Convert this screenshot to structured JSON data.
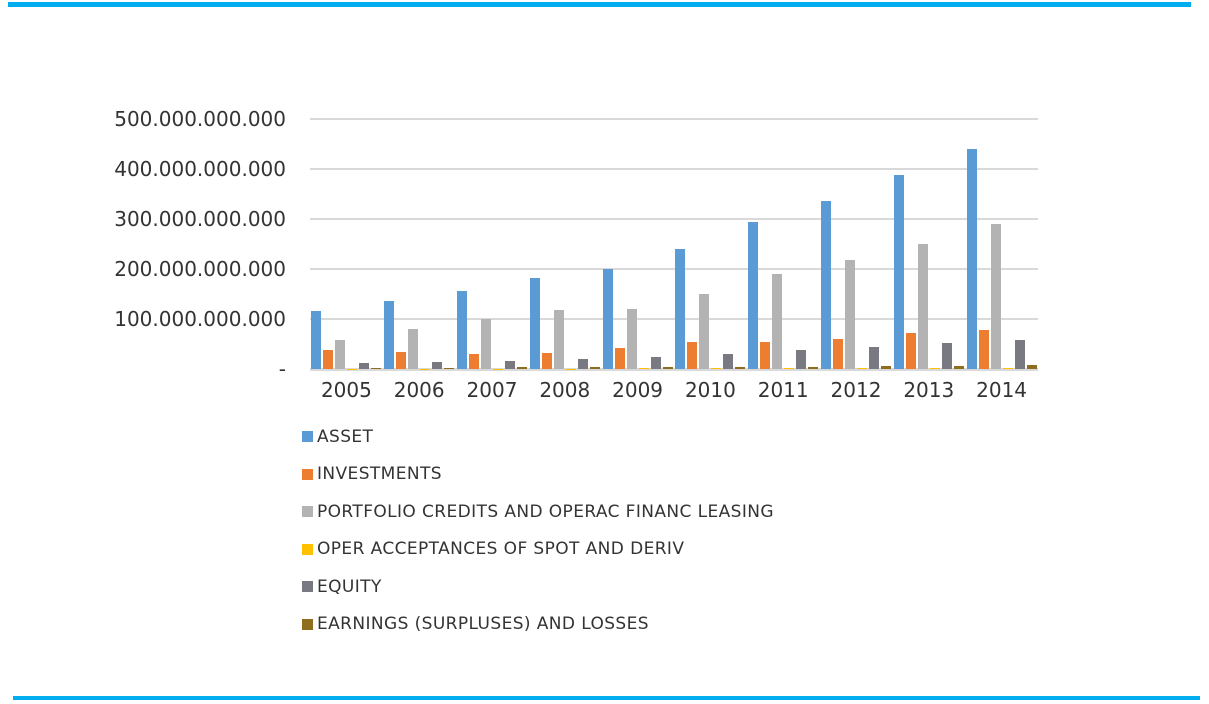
{
  "accent": {
    "color": "#00AEEF"
  },
  "text_color": "#333333",
  "grid_color": "#D9D9D9",
  "chart_data": {
    "type": "bar",
    "title": "",
    "xlabel": "",
    "ylabel": "",
    "unit": "absolute values; axis labels shown ×1.000.000.000",
    "grid": true,
    "legend_position": "bottom-left",
    "categories": [
      "2005",
      "2006",
      "2007",
      "2008",
      "2009",
      "2010",
      "2011",
      "2012",
      "2013",
      "2014"
    ],
    "series": [
      {
        "name": "ASSET",
        "color": "#5B9BD5",
        "values_billions": [
          117,
          136,
          157,
          183,
          200,
          241,
          294,
          337,
          388,
          441
        ]
      },
      {
        "name": "INVESTMENTS",
        "color": "#ED7D31",
        "values_billions": [
          39,
          34,
          30,
          33,
          43,
          54,
          55,
          61,
          72,
          79
        ]
      },
      {
        "name": "PORTFOLIO CREDITS AND OPERAC FINANC LEASING",
        "color": "#B3B3B3",
        "values_billions": [
          58,
          80,
          101,
          119,
          121,
          151,
          190,
          219,
          251,
          290
        ]
      },
      {
        "name": "OPER ACCEPTANCES OF SPOT AND DERIV",
        "color": "#FFC000",
        "values_billions": [
          1,
          1,
          1,
          1,
          2,
          2,
          2,
          2,
          3,
          3
        ]
      },
      {
        "name": "EQUITY",
        "color": "#797981",
        "values_billions": [
          12,
          15,
          17,
          21,
          25,
          31,
          39,
          45,
          53,
          58
        ]
      },
      {
        "name": "EARNINGS (SURPLUSES) AND LOSSES",
        "color": "#8F6D1F",
        "values_billions": [
          3,
          2,
          4,
          5,
          4,
          5,
          5,
          6,
          7,
          9
        ]
      }
    ],
    "y_axis": {
      "max_billions": 500,
      "ticks": [
        {
          "value_billions": 500,
          "label": "500.000.000.000"
        },
        {
          "value_billions": 400,
          "label": "400.000.000.000"
        },
        {
          "value_billions": 300,
          "label": "300.000.000.000"
        },
        {
          "value_billions": 200,
          "label": "200.000.000.000"
        },
        {
          "value_billions": 100,
          "label": "100.000.000.000"
        },
        {
          "value_billions": 0,
          "label": "-"
        }
      ]
    }
  }
}
